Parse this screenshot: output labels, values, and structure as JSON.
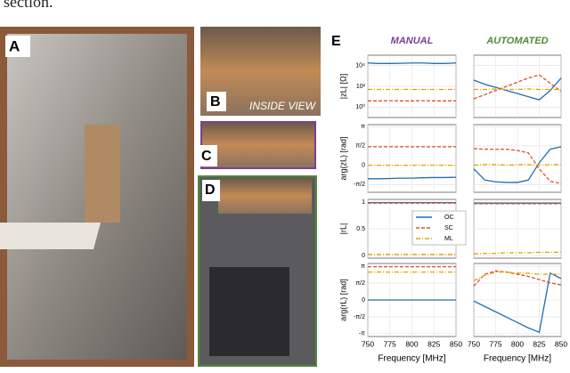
{
  "caption": "section.",
  "photos": [
    {
      "label": "A"
    },
    {
      "label": "B",
      "note": "INSIDE VIEW"
    },
    {
      "label": "C"
    },
    {
      "label": "D"
    }
  ],
  "figure_e": {
    "label": "E",
    "columns": [
      "MANUAL",
      "AUTOMATED"
    ],
    "xlabel": "Frequency [MHz]",
    "x": [
      750,
      762.5,
      775,
      787.5,
      800,
      812.5,
      825,
      837.5,
      850
    ],
    "xlim": [
      750,
      850
    ],
    "xticks": [
      750,
      775,
      800,
      825,
      850
    ],
    "legend": [
      "OC",
      "SC",
      "ML"
    ],
    "colors": [
      "#1f6fb4",
      "#d9532b",
      "#e0a400"
    ],
    "rows": [
      {
        "ylabel": "|zL| [Ω]",
        "ylim": [
          -1,
          5
        ],
        "yticks": [
          {
            "value": 4,
            "label": "10⁴"
          },
          {
            "value": 2,
            "label": "10²"
          },
          {
            "value": 0,
            "label": "10⁰"
          }
        ],
        "series": [
          [
            [
              4.25,
              4.2,
              4.2,
              4.22,
              4.25,
              4.25,
              4.2,
              4.2,
              4.25
            ],
            [
              0.6,
              0.6,
              0.62,
              0.6,
              0.6,
              0.62,
              0.6,
              0.6,
              0.6
            ],
            [
              1.7,
              1.7,
              1.7,
              1.7,
              1.7,
              1.7,
              1.7,
              1.7,
              1.7
            ]
          ],
          [
            [
              2.6,
              2.2,
              1.9,
              1.6,
              1.3,
              1.0,
              0.7,
              1.6,
              2.8
            ],
            [
              0.8,
              1.2,
              1.6,
              2.0,
              2.4,
              2.8,
              3.1,
              2.3,
              1.5
            ],
            [
              1.7,
              1.7,
              1.75,
              1.7,
              1.7,
              1.75,
              1.7,
              1.7,
              1.7
            ]
          ]
        ]
      },
      {
        "ylabel": "arg(zL) [rad]",
        "ylim": [
          -2.2,
          3.3
        ],
        "yticks": [
          {
            "value": 3.14,
            "label": "π"
          },
          {
            "value": 1.57,
            "label": "π/2"
          },
          0,
          {
            "value": -1.57,
            "label": "-π/2"
          }
        ],
        "series": [
          [
            [
              -1.1,
              -1.1,
              -1.08,
              -1.05,
              -1.05,
              -1.02,
              -1.0,
              -1.0,
              -0.98
            ],
            [
              1.5,
              1.5,
              1.5,
              1.5,
              1.5,
              1.5,
              1.5,
              1.5,
              1.5
            ],
            [
              0,
              0,
              0,
              0,
              0,
              0,
              0,
              0,
              0
            ]
          ],
          [
            [
              -0.3,
              -1.2,
              -1.35,
              -1.4,
              -1.4,
              -1.2,
              0.2,
              1.3,
              1.5
            ],
            [
              1.35,
              1.3,
              1.3,
              1.3,
              1.2,
              1.0,
              -0.3,
              -1.3,
              -1.5
            ],
            [
              0,
              0.05,
              0.05,
              0,
              0.05,
              0.05,
              0,
              0.05,
              0.05
            ]
          ]
        ]
      },
      {
        "ylabel": "|rL|",
        "ylim": [
          -0.05,
          1.05
        ],
        "yticks": [
          1,
          0.5,
          0
        ],
        "series": [
          [
            [
              0.99,
              0.99,
              0.99,
              0.99,
              0.99,
              0.99,
              0.99,
              0.99,
              0.99
            ],
            [
              0.98,
              0.98,
              0.98,
              0.98,
              0.98,
              0.98,
              0.98,
              0.98,
              0.98
            ],
            [
              0.02,
              0.02,
              0.02,
              0.02,
              0.02,
              0.02,
              0.02,
              0.02,
              0.02
            ]
          ],
          [
            [
              0.98,
              0.98,
              0.98,
              0.98,
              0.98,
              0.98,
              0.98,
              0.98,
              0.98
            ],
            [
              0.97,
              0.97,
              0.97,
              0.97,
              0.97,
              0.97,
              0.97,
              0.97,
              0.97
            ],
            [
              0.03,
              0.04,
              0.04,
              0.05,
              0.05,
              0.05,
              0.06,
              0.06,
              0.06
            ]
          ]
        ]
      },
      {
        "ylabel": "arg(rL) [rad]",
        "ylim": [
          -3.4,
          3.4
        ],
        "yticks": [
          {
            "value": 3.14,
            "label": "π"
          },
          {
            "value": 1.57,
            "label": "π/2"
          },
          0,
          {
            "value": -1.57,
            "label": "-π/2"
          },
          {
            "value": -3.14,
            "label": "-π"
          }
        ],
        "series": [
          [
            [
              0,
              0,
              0,
              0,
              0,
              0,
              0,
              0,
              0
            ],
            [
              3.1,
              3.1,
              3.1,
              3.1,
              3.1,
              3.1,
              3.1,
              3.1,
              3.1
            ],
            [
              2.6,
              2.6,
              2.6,
              2.6,
              2.6,
              2.6,
              2.6,
              2.6,
              2.6
            ]
          ],
          [
            [
              -0.1,
              -0.6,
              -1.1,
              -1.6,
              -2.1,
              -2.6,
              -3.0,
              2.5,
              2.0
            ],
            [
              1.3,
              2.4,
              2.7,
              2.6,
              2.4,
              2.2,
              1.9,
              1.6,
              1.4
            ],
            [
              1.8,
              2.3,
              2.6,
              2.6,
              2.5,
              2.5,
              2.4,
              2.4,
              2.4
            ]
          ]
        ]
      }
    ]
  }
}
